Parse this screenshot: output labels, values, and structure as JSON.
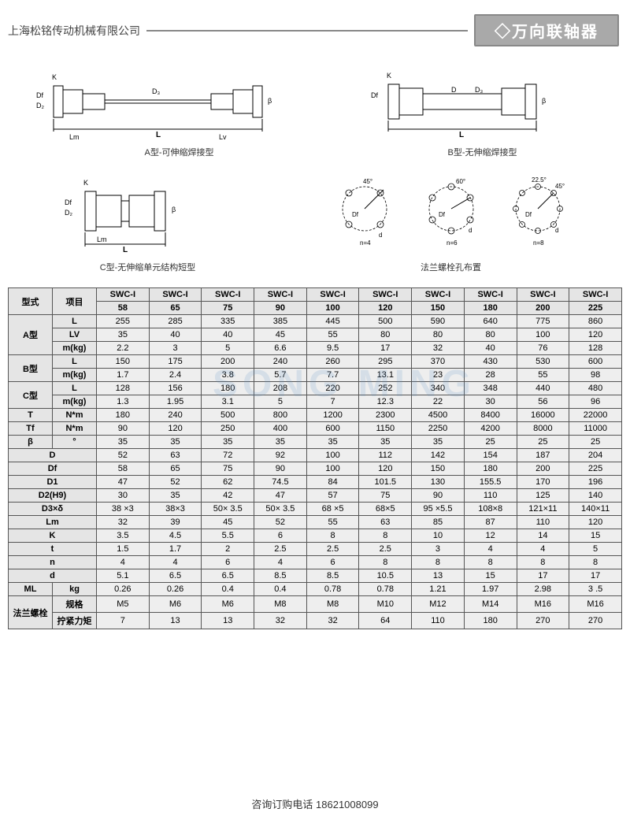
{
  "header": {
    "company": "上海松铭传动机械有限公司",
    "title": "◇万向联轴器"
  },
  "diagrams": {
    "a_caption": "A型-可伸缩焊接型",
    "b_caption": "B型-无伸缩焊接型",
    "c_caption": "C型-无伸缩单元结构短型",
    "flange_caption": "法兰螺栓孔布置",
    "flange_labels": {
      "n4": "n=4",
      "n6": "n=6",
      "n8": "n=8",
      "d": "d",
      "Df": "Df"
    },
    "dim_labels": {
      "K": "K",
      "Df": "Df",
      "D2": "D₂",
      "Lm": "Lm",
      "Lv": "Lv",
      "L": "L",
      "D": "D",
      "D3": "D₃",
      "beta": "β"
    },
    "angles": {
      "a45": "45°",
      "a60": "60°",
      "a225": "22.5°"
    }
  },
  "watermark": "SONG MING",
  "table": {
    "header_type": "型式",
    "header_item": "项目",
    "models": [
      "SWC-I 58",
      "SWC-I 65",
      "SWC-I 75",
      "SWC-I 90",
      "SWC-I 100",
      "SWC-I 120",
      "SWC-I 150",
      "SWC-I 180",
      "SWC-I 200",
      "SWC-I 225"
    ],
    "groups": [
      {
        "name": "A型",
        "rows": [
          {
            "label": "L",
            "vals": [
              "255",
              "285",
              "335",
              "385",
              "445",
              "500",
              "590",
              "640",
              "775",
              "860"
            ]
          },
          {
            "label": "LV",
            "vals": [
              "35",
              "40",
              "40",
              "45",
              "55",
              "80",
              "80",
              "80",
              "100",
              "120"
            ]
          },
          {
            "label": "m(kg)",
            "vals": [
              "2.2",
              "3",
              "5",
              "6.6",
              "9.5",
              "17",
              "32",
              "40",
              "76",
              "128"
            ]
          }
        ]
      },
      {
        "name": "B型",
        "rows": [
          {
            "label": "L",
            "vals": [
              "150",
              "175",
              "200",
              "240",
              "260",
              "295",
              "370",
              "430",
              "530",
              "600"
            ]
          },
          {
            "label": "m(kg)",
            "vals": [
              "1.7",
              "2.4",
              "3.8",
              "5.7",
              "7.7",
              "13.1",
              "23",
              "28",
              "55",
              "98"
            ]
          }
        ]
      },
      {
        "name": "C型",
        "rows": [
          {
            "label": "L",
            "vals": [
              "128",
              "156",
              "180",
              "208",
              "220",
              "252",
              "340",
              "348",
              "440",
              "480"
            ]
          },
          {
            "label": "m(kg)",
            "vals": [
              "1.3",
              "1.95",
              "3.1",
              "5",
              "7",
              "12.3",
              "22",
              "30",
              "56",
              "96"
            ]
          }
        ]
      }
    ],
    "single_rows": [
      {
        "name": "T",
        "unit": "N*m",
        "vals": [
          "180",
          "240",
          "500",
          "800",
          "1200",
          "2300",
          "4500",
          "8400",
          "16000",
          "22000"
        ]
      },
      {
        "name": "Tf",
        "unit": "N*m",
        "vals": [
          "90",
          "120",
          "250",
          "400",
          "600",
          "1150",
          "2250",
          "4200",
          "8000",
          "11000"
        ]
      },
      {
        "name": "β",
        "unit": "°",
        "vals": [
          "35",
          "35",
          "35",
          "35",
          "35",
          "35",
          "35",
          "25",
          "25",
          "25"
        ]
      },
      {
        "name": "D",
        "unit": "",
        "vals": [
          "52",
          "63",
          "72",
          "92",
          "100",
          "112",
          "142",
          "154",
          "187",
          "204"
        ]
      },
      {
        "name": "Df",
        "unit": "",
        "vals": [
          "58",
          "65",
          "75",
          "90",
          "100",
          "120",
          "150",
          "180",
          "200",
          "225"
        ]
      },
      {
        "name": "D1",
        "unit": "",
        "vals": [
          "47",
          "52",
          "62",
          "74.5",
          "84",
          "101.5",
          "130",
          "155.5",
          "170",
          "196"
        ]
      },
      {
        "name": "D2(H9)",
        "unit": "",
        "vals": [
          "30",
          "35",
          "42",
          "47",
          "57",
          "75",
          "90",
          "110",
          "125",
          "140"
        ]
      },
      {
        "name": "D3×δ",
        "unit": "",
        "vals": [
          "38 ×3",
          "38×3",
          "50× 3.5",
          "50× 3.5",
          "68 ×5",
          "68×5",
          "95 ×5.5",
          "108×8",
          "121×11",
          "140×11"
        ]
      },
      {
        "name": "Lm",
        "unit": "",
        "vals": [
          "32",
          "39",
          "45",
          "52",
          "55",
          "63",
          "85",
          "87",
          "110",
          "120"
        ]
      },
      {
        "name": "K",
        "unit": "",
        "vals": [
          "3.5",
          "4.5",
          "5.5",
          "6",
          "8",
          "8",
          "10",
          "12",
          "14",
          "15"
        ]
      },
      {
        "name": "t",
        "unit": "",
        "vals": [
          "1.5",
          "1.7",
          "2",
          "2.5",
          "2.5",
          "2.5",
          "3",
          "4",
          "4",
          "5"
        ]
      },
      {
        "name": "n",
        "unit": "",
        "vals": [
          "4",
          "4",
          "6",
          "4",
          "6",
          "8",
          "8",
          "8",
          "8",
          "8"
        ]
      },
      {
        "name": "d",
        "unit": "",
        "vals": [
          "5.1",
          "6.5",
          "6.5",
          "8.5",
          "8.5",
          "10.5",
          "13",
          "15",
          "17",
          "17"
        ]
      }
    ],
    "ml_row": {
      "name": "ML",
      "unit": "kg",
      "vals": [
        "0.26",
        "0.26",
        "0.4",
        "0.4",
        "0.78",
        "0.78",
        "1.21",
        "1.97",
        "2.98",
        "3 .5"
      ]
    },
    "flange_group": {
      "name": "法兰螺栓",
      "rows": [
        {
          "label": "规格",
          "vals": [
            "M5",
            "M6",
            "M6",
            "M8",
            "M8",
            "M10",
            "M12",
            "M14",
            "M16",
            "M16"
          ]
        },
        {
          "label": "拧紧力矩",
          "vals": [
            "7",
            "13",
            "13",
            "32",
            "32",
            "64",
            "110",
            "180",
            "270",
            "270"
          ]
        }
      ]
    }
  },
  "footer": "咨询订购电话  18621008099",
  "colors": {
    "badge_bg": "#a9a9a9",
    "badge_border": "#888",
    "table_bg": "#eeeeee",
    "table_border": "#555",
    "watermark": "rgba(100,150,200,0.18)"
  }
}
